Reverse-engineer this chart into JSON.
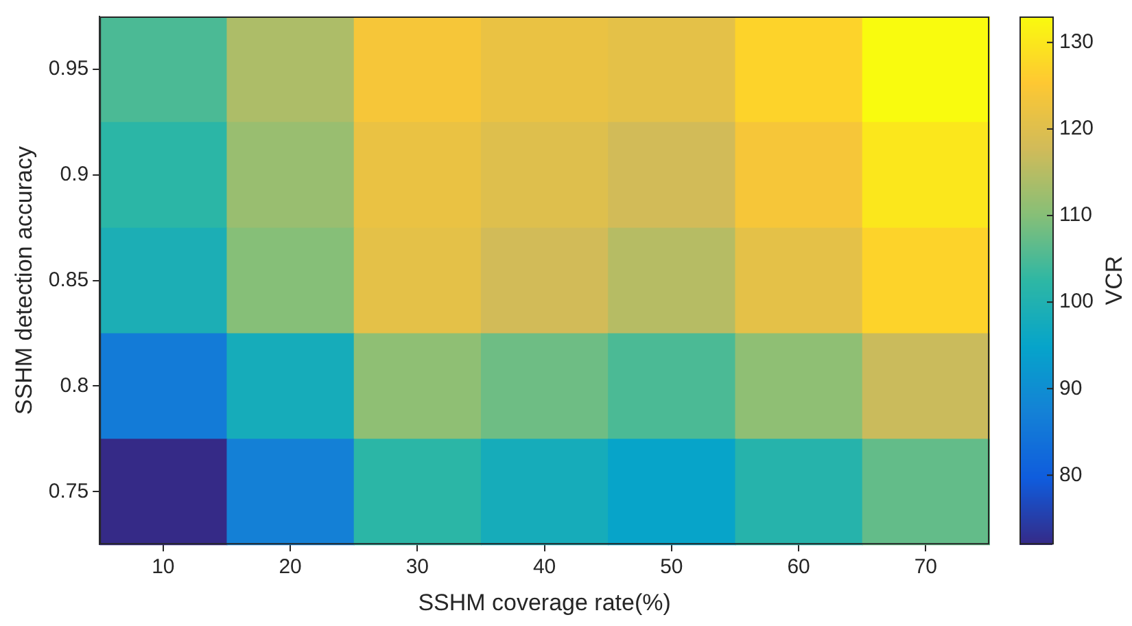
{
  "chart_data": {
    "type": "heatmap",
    "xlabel": "SSHM coverage rate(%)",
    "ylabel": "SSHM detection accuracy",
    "clabel": "VCR",
    "categories": [
      "10",
      "20",
      "30",
      "40",
      "50",
      "60",
      "70"
    ],
    "y_categories": [
      "0.95",
      "0.9",
      "0.85",
      "0.8",
      "0.75"
    ],
    "cells": [
      [
        105,
        114,
        124,
        122,
        121,
        127,
        133
      ],
      [
        102,
        112,
        122,
        120,
        118,
        124,
        130
      ],
      [
        99,
        110,
        121,
        118,
        115,
        121,
        127
      ],
      [
        86,
        98,
        111,
        108,
        105,
        111,
        117
      ],
      [
        72,
        87,
        102,
        98,
        95,
        101,
        107
      ]
    ],
    "clim": [
      72,
      133
    ],
    "cticks": [
      80,
      90,
      100,
      110,
      120,
      130
    ]
  }
}
